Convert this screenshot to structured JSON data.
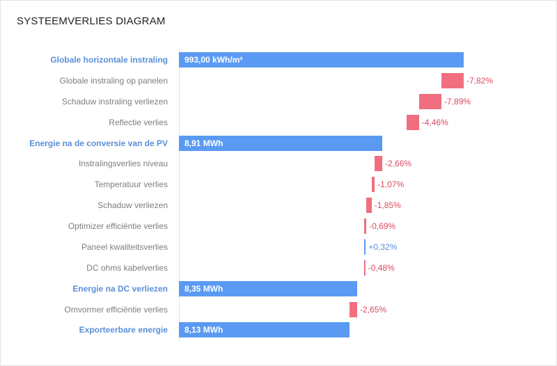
{
  "chart_data": {
    "type": "waterfall",
    "title": "SYSTEEMVERLIES DIAGRAM",
    "rows": [
      {
        "label": "Globale horizontale instraling",
        "kind": "total",
        "value": 100.0,
        "display": "993,00 kWh/m²"
      },
      {
        "label": "Globale instraling op panelen",
        "kind": "delta",
        "value": -7.82,
        "display": "-7,82%"
      },
      {
        "label": "Schaduw instraling verliezen",
        "kind": "delta",
        "value": -7.89,
        "display": "-7,89%"
      },
      {
        "label": "Reflectie verlies",
        "kind": "delta",
        "value": -4.46,
        "display": "-4,46%"
      },
      {
        "label": "Energie na de conversie van de PV",
        "kind": "total",
        "value": 71.4,
        "display": "8,91 MWh"
      },
      {
        "label": "Instralingsverlies niveau",
        "kind": "delta",
        "value": -2.66,
        "display": "-2,66%"
      },
      {
        "label": "Temperatuur verlies",
        "kind": "delta",
        "value": -1.07,
        "display": "-1,07%"
      },
      {
        "label": "Schaduw verliezen",
        "kind": "delta",
        "value": -1.85,
        "display": "-1,85%"
      },
      {
        "label": "Optimizer efficiëntie verlies",
        "kind": "delta",
        "value": -0.69,
        "display": "-0,69%"
      },
      {
        "label": "Paneel kwaliteitsverlies",
        "kind": "delta",
        "value": 0.32,
        "display": "+0,32%"
      },
      {
        "label": "DC ohms kabelverlies",
        "kind": "delta",
        "value": -0.48,
        "display": "-0,48%"
      },
      {
        "label": "Energie na DC verliezen",
        "kind": "total",
        "value": 62.6,
        "display": "8,35 MWh"
      },
      {
        "label": "Omvormer efficiëntie verlies",
        "kind": "delta",
        "value": -2.65,
        "display": "-2,65%"
      },
      {
        "label": "Exporteerbare energie",
        "kind": "total",
        "value": 59.95,
        "display": "8,13 MWh"
      }
    ]
  }
}
